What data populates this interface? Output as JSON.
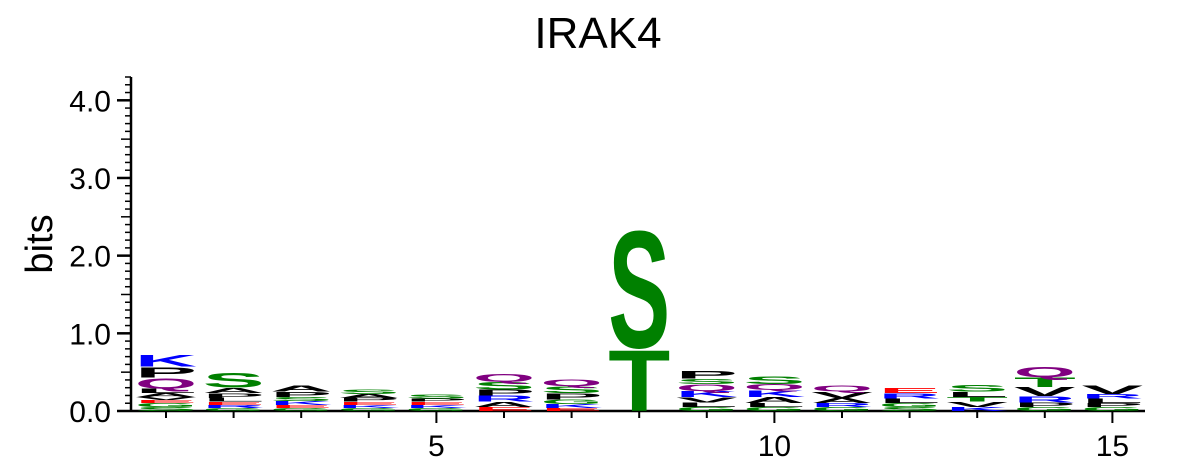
{
  "chart_data": {
    "type": "sequence-logo",
    "title": "IRAK4",
    "ylabel": "bits",
    "xlabel": "",
    "ylim": [
      0,
      4.3
    ],
    "y_ticks": [
      "0.0",
      "1.0",
      "2.0",
      "3.0",
      "4.0"
    ],
    "x_ticks": [
      "5",
      "10",
      "15"
    ],
    "x_tick_positions": [
      5,
      10,
      15
    ],
    "color_scheme": {
      "polar": "#008000",
      "basic": "#0000ff",
      "acidic": "#ff0000",
      "hydrophobic": "#000000",
      "amide": "#800080"
    },
    "positions": [
      {
        "pos": 1,
        "letters": [
          {
            "aa": "S",
            "bits": 0.05,
            "color": "#008000"
          },
          {
            "aa": "G",
            "bits": 0.05,
            "color": "#008000"
          },
          {
            "aa": "E",
            "bits": 0.04,
            "color": "#ff0000"
          },
          {
            "aa": "V",
            "bits": 0.04,
            "color": "#000000"
          },
          {
            "aa": "A",
            "bits": 0.05,
            "color": "#000000"
          },
          {
            "aa": "L",
            "bits": 0.06,
            "color": "#000000"
          },
          {
            "aa": "Q",
            "bits": 0.14,
            "color": "#800080"
          },
          {
            "aa": "P",
            "bits": 0.14,
            "color": "#000000"
          },
          {
            "aa": "K",
            "bits": 0.16,
            "color": "#0000ff"
          }
        ]
      },
      {
        "pos": 2,
        "letters": [
          {
            "aa": "G",
            "bits": 0.04,
            "color": "#008000"
          },
          {
            "aa": "R",
            "bits": 0.04,
            "color": "#0000ff"
          },
          {
            "aa": "E",
            "bits": 0.04,
            "color": "#ff0000"
          },
          {
            "aa": "L",
            "bits": 0.05,
            "color": "#000000"
          },
          {
            "aa": "P",
            "bits": 0.06,
            "color": "#000000"
          },
          {
            "aa": "A",
            "bits": 0.07,
            "color": "#000000"
          },
          {
            "aa": "S",
            "bits": 0.2,
            "color": "#008000"
          }
        ]
      },
      {
        "pos": 3,
        "letters": [
          {
            "aa": "G",
            "bits": 0.04,
            "color": "#008000"
          },
          {
            "aa": "E",
            "bits": 0.04,
            "color": "#ff0000"
          },
          {
            "aa": "K",
            "bits": 0.05,
            "color": "#0000ff"
          },
          {
            "aa": "S",
            "bits": 0.05,
            "color": "#008000"
          },
          {
            "aa": "P",
            "bits": 0.07,
            "color": "#000000"
          },
          {
            "aa": "A",
            "bits": 0.08,
            "color": "#000000"
          }
        ]
      },
      {
        "pos": 4,
        "letters": [
          {
            "aa": "G",
            "bits": 0.04,
            "color": "#008000"
          },
          {
            "aa": "K",
            "bits": 0.04,
            "color": "#0000ff"
          },
          {
            "aa": "E",
            "bits": 0.04,
            "color": "#ff0000"
          },
          {
            "aa": "P",
            "bits": 0.05,
            "color": "#000000"
          },
          {
            "aa": "A",
            "bits": 0.05,
            "color": "#000000"
          },
          {
            "aa": "S",
            "bits": 0.06,
            "color": "#008000"
          }
        ]
      },
      {
        "pos": 5,
        "letters": [
          {
            "aa": "G",
            "bits": 0.04,
            "color": "#008000"
          },
          {
            "aa": "K",
            "bits": 0.04,
            "color": "#0000ff"
          },
          {
            "aa": "E",
            "bits": 0.04,
            "color": "#ff0000"
          },
          {
            "aa": "P",
            "bits": 0.04,
            "color": "#000000"
          },
          {
            "aa": "S",
            "bits": 0.05,
            "color": "#008000"
          }
        ]
      },
      {
        "pos": 6,
        "letters": [
          {
            "aa": "E",
            "bits": 0.05,
            "color": "#ff0000"
          },
          {
            "aa": "A",
            "bits": 0.07,
            "color": "#000000"
          },
          {
            "aa": "R",
            "bits": 0.08,
            "color": "#0000ff"
          },
          {
            "aa": "P",
            "bits": 0.08,
            "color": "#000000"
          },
          {
            "aa": "S",
            "bits": 0.1,
            "color": "#008000"
          },
          {
            "aa": "Q",
            "bits": 0.1,
            "color": "#800080"
          }
        ]
      },
      {
        "pos": 7,
        "letters": [
          {
            "aa": "E",
            "bits": 0.04,
            "color": "#ff0000"
          },
          {
            "aa": "K",
            "bits": 0.05,
            "color": "#0000ff"
          },
          {
            "aa": "G",
            "bits": 0.06,
            "color": "#008000"
          },
          {
            "aa": "P",
            "bits": 0.08,
            "color": "#000000"
          },
          {
            "aa": "S",
            "bits": 0.09,
            "color": "#008000"
          },
          {
            "aa": "Q",
            "bits": 0.09,
            "color": "#800080"
          }
        ]
      },
      {
        "pos": 8,
        "letters": [
          {
            "aa": "T",
            "bits": 0.82,
            "color": "#008000"
          },
          {
            "aa": "S",
            "bits": 1.57,
            "color": "#008000"
          }
        ]
      },
      {
        "pos": 9,
        "letters": [
          {
            "aa": "G",
            "bits": 0.05,
            "color": "#008000"
          },
          {
            "aa": "L",
            "bits": 0.06,
            "color": "#000000"
          },
          {
            "aa": "V",
            "bits": 0.07,
            "color": "#000000"
          },
          {
            "aa": "K",
            "bits": 0.08,
            "color": "#0000ff"
          },
          {
            "aa": "Q",
            "bits": 0.09,
            "color": "#800080"
          },
          {
            "aa": "S",
            "bits": 0.07,
            "color": "#008000"
          },
          {
            "aa": "P",
            "bits": 0.1,
            "color": "#000000"
          }
        ]
      },
      {
        "pos": 10,
        "letters": [
          {
            "aa": "G",
            "bits": 0.05,
            "color": "#008000"
          },
          {
            "aa": "L",
            "bits": 0.05,
            "color": "#000000"
          },
          {
            "aa": "A",
            "bits": 0.08,
            "color": "#000000"
          },
          {
            "aa": "K",
            "bits": 0.09,
            "color": "#0000ff"
          },
          {
            "aa": "Q",
            "bits": 0.08,
            "color": "#800080"
          },
          {
            "aa": "S",
            "bits": 0.1,
            "color": "#008000"
          }
        ]
      },
      {
        "pos": 11,
        "letters": [
          {
            "aa": "G",
            "bits": 0.05,
            "color": "#008000"
          },
          {
            "aa": "R",
            "bits": 0.05,
            "color": "#0000ff"
          },
          {
            "aa": "A",
            "bits": 0.07,
            "color": "#000000"
          },
          {
            "aa": "V",
            "bits": 0.08,
            "color": "#000000"
          },
          {
            "aa": "Q",
            "bits": 0.08,
            "color": "#800080"
          }
        ]
      },
      {
        "pos": 12,
        "letters": [
          {
            "aa": "S",
            "bits": 0.05,
            "color": "#008000"
          },
          {
            "aa": "G",
            "bits": 0.05,
            "color": "#008000"
          },
          {
            "aa": "L",
            "bits": 0.06,
            "color": "#000000"
          },
          {
            "aa": "R",
            "bits": 0.07,
            "color": "#0000ff"
          },
          {
            "aa": "E",
            "bits": 0.07,
            "color": "#ff0000"
          }
        ]
      },
      {
        "pos": 13,
        "letters": [
          {
            "aa": "K",
            "bits": 0.05,
            "color": "#0000ff"
          },
          {
            "aa": "V",
            "bits": 0.07,
            "color": "#000000"
          },
          {
            "aa": "T",
            "bits": 0.06,
            "color": "#008000"
          },
          {
            "aa": "L",
            "bits": 0.07,
            "color": "#000000"
          },
          {
            "aa": "S",
            "bits": 0.09,
            "color": "#008000"
          }
        ]
      },
      {
        "pos": 14,
        "letters": [
          {
            "aa": "G",
            "bits": 0.05,
            "color": "#008000"
          },
          {
            "aa": "P",
            "bits": 0.06,
            "color": "#000000"
          },
          {
            "aa": "R",
            "bits": 0.08,
            "color": "#0000ff"
          },
          {
            "aa": "V",
            "bits": 0.12,
            "color": "#000000"
          },
          {
            "aa": "T",
            "bits": 0.13,
            "color": "#008000"
          },
          {
            "aa": "Q",
            "bits": 0.14,
            "color": "#800080"
          }
        ]
      },
      {
        "pos": 15,
        "letters": [
          {
            "aa": "G",
            "bits": 0.05,
            "color": "#008000"
          },
          {
            "aa": "P",
            "bits": 0.05,
            "color": "#000000"
          },
          {
            "aa": "L",
            "bits": 0.06,
            "color": "#000000"
          },
          {
            "aa": "R",
            "bits": 0.06,
            "color": "#0000ff"
          },
          {
            "aa": "V",
            "bits": 0.11,
            "color": "#000000"
          }
        ]
      }
    ]
  }
}
